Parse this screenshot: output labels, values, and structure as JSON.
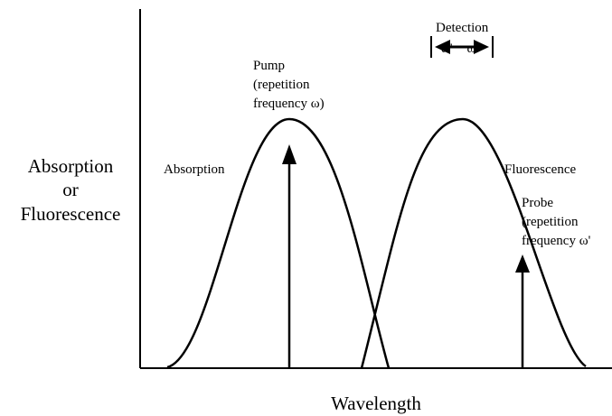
{
  "y_axis_label": [
    "Absorption",
    "or",
    "Fluorescence"
  ],
  "x_axis_label": "Wavelength",
  "curves": {
    "absorption": "Absorption",
    "fluorescence": "Fluorescence"
  },
  "pump": [
    "Pump",
    "(repetition",
    "frequency  ω)"
  ],
  "detection": {
    "title": "Detection",
    "label": "ω' − ω"
  },
  "probe": [
    "Probe",
    "(repetition",
    "frequency  ω'"
  ]
}
